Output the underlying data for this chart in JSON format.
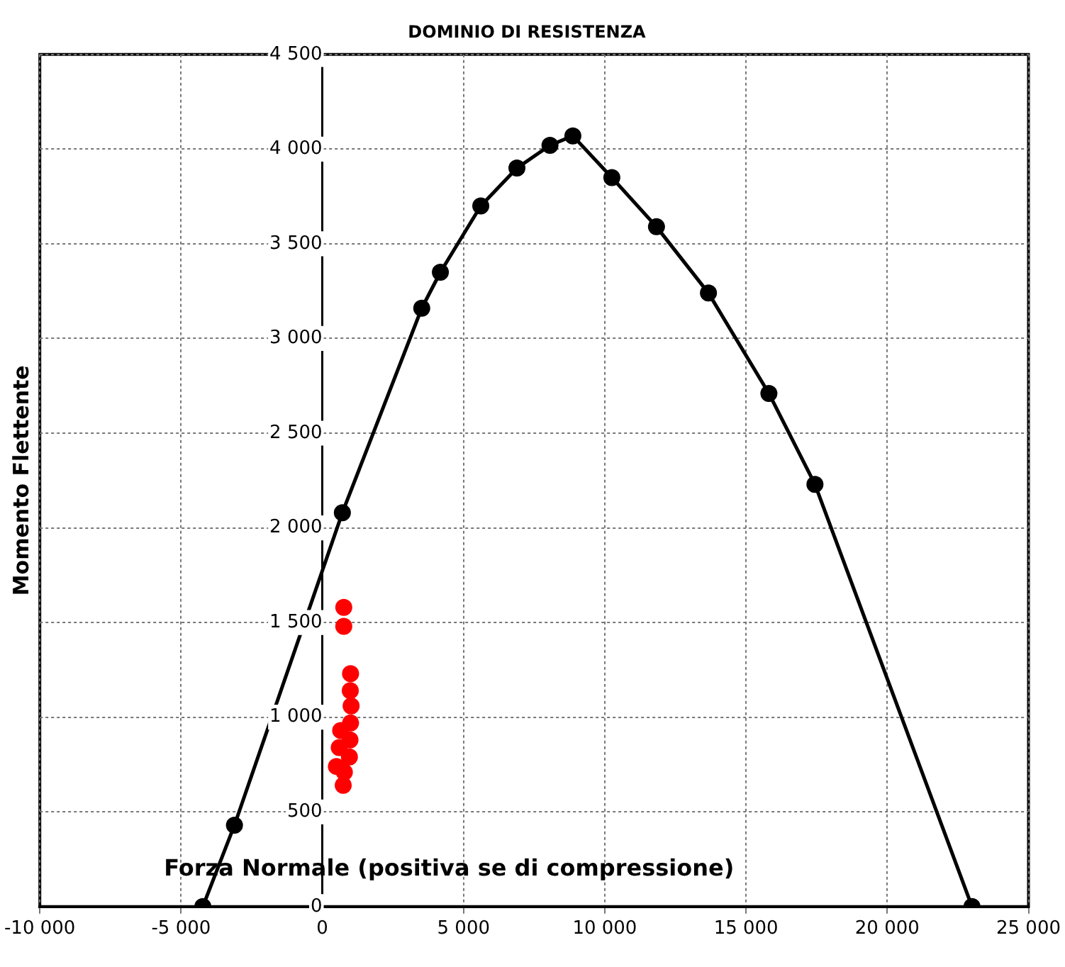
{
  "chart_data": {
    "type": "line",
    "title": "DOMINIO DI RESISTENZA",
    "xlabel": "Forza Normale (positiva se di compressione)",
    "ylabel": "Momento Flettente",
    "xlim": [
      -10000,
      25000
    ],
    "xticks": [
      {
        "value": -10000,
        "label": "-10 000"
      },
      {
        "value": -5000,
        "label": "-5 000"
      },
      0,
      {
        "value": 5000,
        "label": "5 000"
      },
      {
        "value": 10000,
        "label": "10 000"
      },
      {
        "value": 15000,
        "label": "15 000"
      },
      {
        "value": 20000,
        "label": "20 000"
      },
      {
        "value": 25000,
        "label": "25 000"
      }
    ],
    "ylim": [
      0,
      4500
    ],
    "yticks": [
      0,
      500,
      {
        "value": 1000,
        "label": "1 000"
      },
      {
        "value": 1500,
        "label": "1 500"
      },
      {
        "value": 2000,
        "label": "2 000"
      },
      {
        "value": 2500,
        "label": "2 500"
      },
      {
        "value": 3000,
        "label": "3 000"
      },
      {
        "value": 3500,
        "label": "3 500"
      },
      {
        "value": 4000,
        "label": "4 000"
      },
      {
        "value": 4500,
        "label": "4 500"
      }
    ],
    "grid": true,
    "legend": false,
    "marker": "circle",
    "line_style": "solid",
    "series": [
      {
        "type": "line",
        "color": "#000000",
        "x": [
          -4230,
          -3110,
          710,
          3520,
          4180,
          5610,
          6890,
          8060,
          8870,
          10250,
          11830,
          13670,
          15810,
          17440,
          23000
        ],
        "values": [
          0,
          430,
          2080,
          3160,
          3350,
          3700,
          3900,
          4020,
          4070,
          3850,
          3590,
          3240,
          2710,
          2230,
          0
        ]
      },
      {
        "type": "scatter",
        "color": "#ff0000",
        "x": [
          760,
          760,
          1000,
          990,
          1020,
          1000,
          980,
          960,
          650,
          600,
          500,
          780,
          740
        ],
        "values": [
          1580,
          1480,
          1230,
          1140,
          1060,
          970,
          880,
          790,
          930,
          840,
          740,
          710,
          640
        ]
      }
    ]
  }
}
